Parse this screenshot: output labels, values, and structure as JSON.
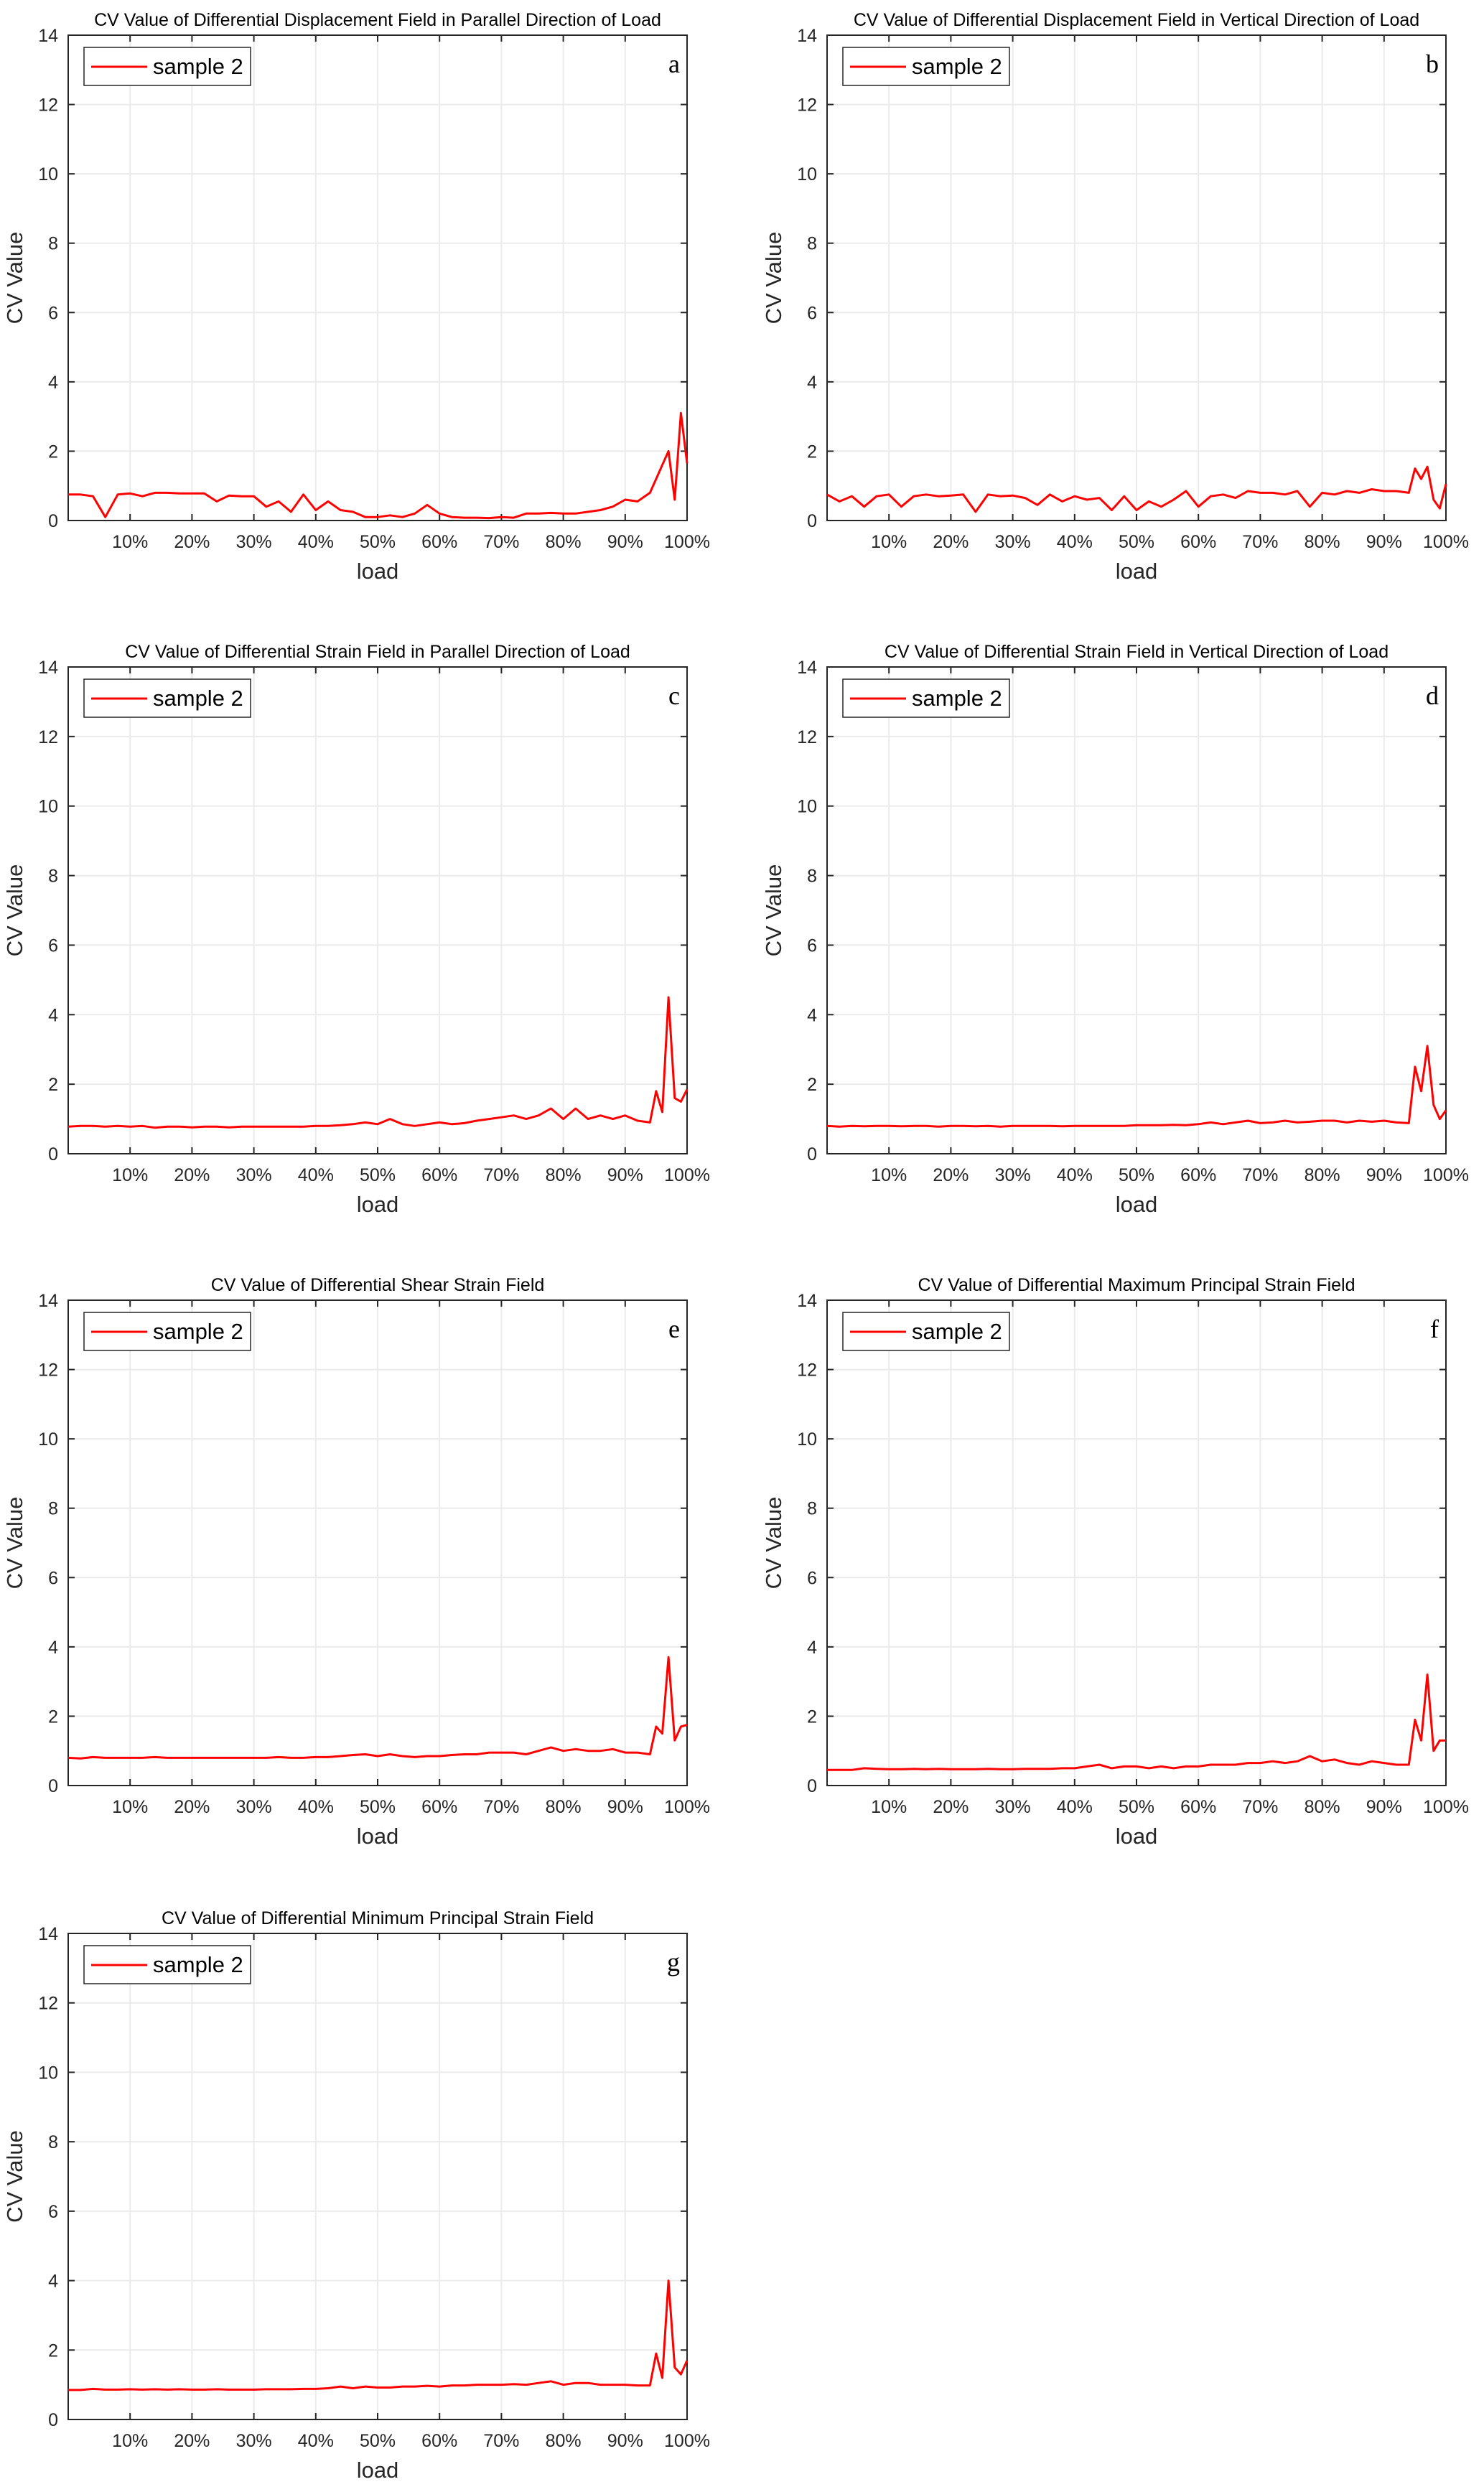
{
  "chart_data": [
    {
      "type": "line",
      "panel_letter": "a",
      "title": "CV Value of Differential Displacement Field in Parallel Direction of Load",
      "xlabel": "load",
      "ylabel": "CV Value",
      "ylim": [
        0,
        14
      ],
      "xlim": [
        0,
        100
      ],
      "yticks": [
        "0",
        "2",
        "4",
        "6",
        "8",
        "10",
        "12",
        "14"
      ],
      "xticks": [
        "10%",
        "20%",
        "30%",
        "40%",
        "50%",
        "60%",
        "70%",
        "80%",
        "90%",
        "100%"
      ],
      "grid": true,
      "legend": "top-left",
      "series": [
        {
          "name": "sample 2",
          "color": "#ff0000",
          "values": [
            0.75,
            0.75,
            0.7,
            0.1,
            0.75,
            0.78,
            0.7,
            0.8,
            0.8,
            0.78,
            0.78,
            0.78,
            0.55,
            0.72,
            0.7,
            0.7,
            0.4,
            0.55,
            0.25,
            0.75,
            0.3,
            0.55,
            0.3,
            0.25,
            0.1,
            0.1,
            0.15,
            0.1,
            0.2,
            0.45,
            0.2,
            0.1,
            0.08,
            0.08,
            0.07,
            0.1,
            0.08,
            0.2,
            0.2,
            0.22,
            0.2,
            0.2,
            0.25,
            0.3,
            0.4,
            0.6,
            0.55,
            0.8,
            1.2,
            1.6,
            2.0,
            0.6,
            3.1,
            1.65
          ]
        }
      ]
    },
    {
      "type": "line",
      "panel_letter": "b",
      "title": "CV Value of Differential Displacement Field in Vertical Direction of Load",
      "xlabel": "load",
      "ylabel": "CV Value",
      "ylim": [
        0,
        14
      ],
      "xlim": [
        0,
        100
      ],
      "yticks": [
        "0",
        "2",
        "4",
        "6",
        "8",
        "10",
        "12",
        "14"
      ],
      "xticks": [
        "10%",
        "20%",
        "30%",
        "40%",
        "50%",
        "60%",
        "70%",
        "80%",
        "90%",
        "100%"
      ],
      "grid": true,
      "legend": "top-left",
      "series": [
        {
          "name": "sample 2",
          "color": "#ff0000",
          "values": [
            0.75,
            0.55,
            0.7,
            0.4,
            0.7,
            0.75,
            0.4,
            0.7,
            0.75,
            0.7,
            0.72,
            0.75,
            0.25,
            0.75,
            0.7,
            0.72,
            0.65,
            0.45,
            0.75,
            0.55,
            0.7,
            0.6,
            0.65,
            0.3,
            0.7,
            0.3,
            0.55,
            0.4,
            0.6,
            0.85,
            0.4,
            0.7,
            0.75,
            0.65,
            0.85,
            0.8,
            0.8,
            0.75,
            0.85,
            0.4,
            0.8,
            0.75,
            0.85,
            0.8,
            0.9,
            0.85,
            0.85,
            0.8,
            1.5,
            1.2,
            1.55,
            0.6,
            0.35,
            1.05
          ]
        }
      ]
    },
    {
      "type": "line",
      "panel_letter": "c",
      "title": "CV Value of Differential Strain Field in Parallel Direction of Load",
      "xlabel": "load",
      "ylabel": "CV Value",
      "ylim": [
        0,
        14
      ],
      "xlim": [
        0,
        100
      ],
      "yticks": [
        "0",
        "2",
        "4",
        "6",
        "8",
        "10",
        "12",
        "14"
      ],
      "xticks": [
        "10%",
        "20%",
        "30%",
        "40%",
        "50%",
        "60%",
        "70%",
        "80%",
        "90%",
        "100%"
      ],
      "grid": true,
      "legend": "top-left",
      "series": [
        {
          "name": "sample 2",
          "color": "#ff0000",
          "values": [
            0.78,
            0.8,
            0.8,
            0.78,
            0.8,
            0.78,
            0.8,
            0.75,
            0.78,
            0.78,
            0.76,
            0.78,
            0.78,
            0.76,
            0.78,
            0.78,
            0.78,
            0.78,
            0.78,
            0.78,
            0.8,
            0.8,
            0.82,
            0.85,
            0.9,
            0.85,
            1.0,
            0.85,
            0.8,
            0.85,
            0.9,
            0.85,
            0.88,
            0.95,
            1.0,
            1.05,
            1.1,
            1.0,
            1.1,
            1.3,
            1.0,
            1.3,
            1.0,
            1.1,
            1.0,
            1.1,
            0.95,
            0.9,
            1.8,
            1.2,
            4.5,
            1.6,
            1.5,
            1.85
          ]
        }
      ]
    },
    {
      "type": "line",
      "panel_letter": "d",
      "title": "CV Value of Differential Strain Field in Vertical Direction of Load",
      "xlabel": "load",
      "ylabel": "CV Value",
      "ylim": [
        0,
        14
      ],
      "xlim": [
        0,
        100
      ],
      "yticks": [
        "0",
        "2",
        "4",
        "6",
        "8",
        "10",
        "12",
        "14"
      ],
      "xticks": [
        "10%",
        "20%",
        "30%",
        "40%",
        "50%",
        "60%",
        "70%",
        "80%",
        "90%",
        "100%"
      ],
      "grid": true,
      "legend": "top-left",
      "series": [
        {
          "name": "sample 2",
          "color": "#ff0000",
          "values": [
            0.8,
            0.78,
            0.8,
            0.79,
            0.8,
            0.8,
            0.79,
            0.8,
            0.8,
            0.78,
            0.8,
            0.8,
            0.79,
            0.8,
            0.78,
            0.8,
            0.8,
            0.8,
            0.8,
            0.79,
            0.8,
            0.8,
            0.8,
            0.8,
            0.8,
            0.82,
            0.82,
            0.82,
            0.83,
            0.82,
            0.85,
            0.9,
            0.85,
            0.9,
            0.95,
            0.88,
            0.9,
            0.95,
            0.9,
            0.92,
            0.95,
            0.95,
            0.9,
            0.95,
            0.92,
            0.95,
            0.9,
            0.88,
            2.5,
            1.8,
            3.1,
            1.4,
            1.0,
            1.25
          ]
        }
      ]
    },
    {
      "type": "line",
      "panel_letter": "e",
      "title": "CV Value of Differential Shear Strain Field",
      "xlabel": "load",
      "ylabel": "CV Value",
      "ylim": [
        0,
        14
      ],
      "xlim": [
        0,
        100
      ],
      "yticks": [
        "0",
        "2",
        "4",
        "6",
        "8",
        "10",
        "12",
        "14"
      ],
      "xticks": [
        "10%",
        "20%",
        "30%",
        "40%",
        "50%",
        "60%",
        "70%",
        "80%",
        "90%",
        "100%"
      ],
      "grid": true,
      "legend": "top-left",
      "series": [
        {
          "name": "sample 2",
          "color": "#ff0000",
          "values": [
            0.8,
            0.78,
            0.82,
            0.8,
            0.8,
            0.8,
            0.8,
            0.82,
            0.8,
            0.8,
            0.8,
            0.8,
            0.8,
            0.8,
            0.8,
            0.8,
            0.8,
            0.82,
            0.8,
            0.8,
            0.82,
            0.82,
            0.85,
            0.88,
            0.9,
            0.85,
            0.9,
            0.85,
            0.82,
            0.85,
            0.85,
            0.88,
            0.9,
            0.9,
            0.95,
            0.95,
            0.95,
            0.9,
            1.0,
            1.1,
            1.0,
            1.05,
            1.0,
            1.0,
            1.05,
            0.95,
            0.95,
            0.9,
            1.7,
            1.5,
            3.7,
            1.3,
            1.7,
            1.75
          ]
        }
      ]
    },
    {
      "type": "line",
      "panel_letter": "f",
      "title": "CV Value of Differential Maximum Principal Strain Field",
      "xlabel": "load",
      "ylabel": "CV Value",
      "ylim": [
        0,
        14
      ],
      "xlim": [
        0,
        100
      ],
      "yticks": [
        "0",
        "2",
        "4",
        "6",
        "8",
        "10",
        "12",
        "14"
      ],
      "xticks": [
        "10%",
        "20%",
        "30%",
        "40%",
        "50%",
        "60%",
        "70%",
        "80%",
        "90%",
        "100%"
      ],
      "grid": true,
      "legend": "top-left",
      "series": [
        {
          "name": "sample 2",
          "color": "#ff0000",
          "values": [
            0.45,
            0.45,
            0.45,
            0.5,
            0.48,
            0.47,
            0.47,
            0.48,
            0.47,
            0.48,
            0.47,
            0.47,
            0.47,
            0.48,
            0.47,
            0.47,
            0.48,
            0.48,
            0.48,
            0.5,
            0.5,
            0.55,
            0.6,
            0.5,
            0.55,
            0.55,
            0.5,
            0.55,
            0.5,
            0.55,
            0.55,
            0.6,
            0.6,
            0.6,
            0.65,
            0.65,
            0.7,
            0.65,
            0.7,
            0.85,
            0.7,
            0.75,
            0.65,
            0.6,
            0.7,
            0.65,
            0.6,
            0.6,
            1.9,
            1.3,
            3.2,
            1.0,
            1.3,
            1.3
          ]
        }
      ]
    },
    {
      "type": "line",
      "panel_letter": "g",
      "title": "CV Value of Differential Minimum Principal Strain Field",
      "xlabel": "load",
      "ylabel": "CV Value",
      "ylim": [
        0,
        14
      ],
      "xlim": [
        0,
        100
      ],
      "yticks": [
        "0",
        "2",
        "4",
        "6",
        "8",
        "10",
        "12",
        "14"
      ],
      "xticks": [
        "10%",
        "20%",
        "30%",
        "40%",
        "50%",
        "60%",
        "70%",
        "80%",
        "90%",
        "100%"
      ],
      "grid": true,
      "legend": "top-left",
      "series": [
        {
          "name": "sample 2",
          "color": "#ff0000",
          "values": [
            0.85,
            0.85,
            0.88,
            0.86,
            0.86,
            0.87,
            0.86,
            0.87,
            0.86,
            0.87,
            0.86,
            0.86,
            0.87,
            0.86,
            0.86,
            0.86,
            0.87,
            0.87,
            0.87,
            0.88,
            0.88,
            0.9,
            0.95,
            0.9,
            0.95,
            0.92,
            0.92,
            0.95,
            0.95,
            0.97,
            0.95,
            0.98,
            0.98,
            1.0,
            1.0,
            1.0,
            1.02,
            1.0,
            1.05,
            1.1,
            1.0,
            1.05,
            1.05,
            1.0,
            1.0,
            1.0,
            0.98,
            0.98,
            1.9,
            1.2,
            4.0,
            1.5,
            1.3,
            1.7
          ]
        }
      ]
    }
  ],
  "x_load_percent": [
    0,
    2,
    4,
    6,
    8,
    10,
    12,
    14,
    16,
    18,
    20,
    22,
    24,
    26,
    28,
    30,
    32,
    34,
    36,
    38,
    40,
    42,
    44,
    46,
    48,
    50,
    52,
    54,
    56,
    58,
    60,
    62,
    64,
    66,
    68,
    70,
    72,
    74,
    76,
    78,
    80,
    82,
    84,
    86,
    88,
    90,
    92,
    94,
    95,
    96,
    97,
    98,
    99,
    100
  ]
}
